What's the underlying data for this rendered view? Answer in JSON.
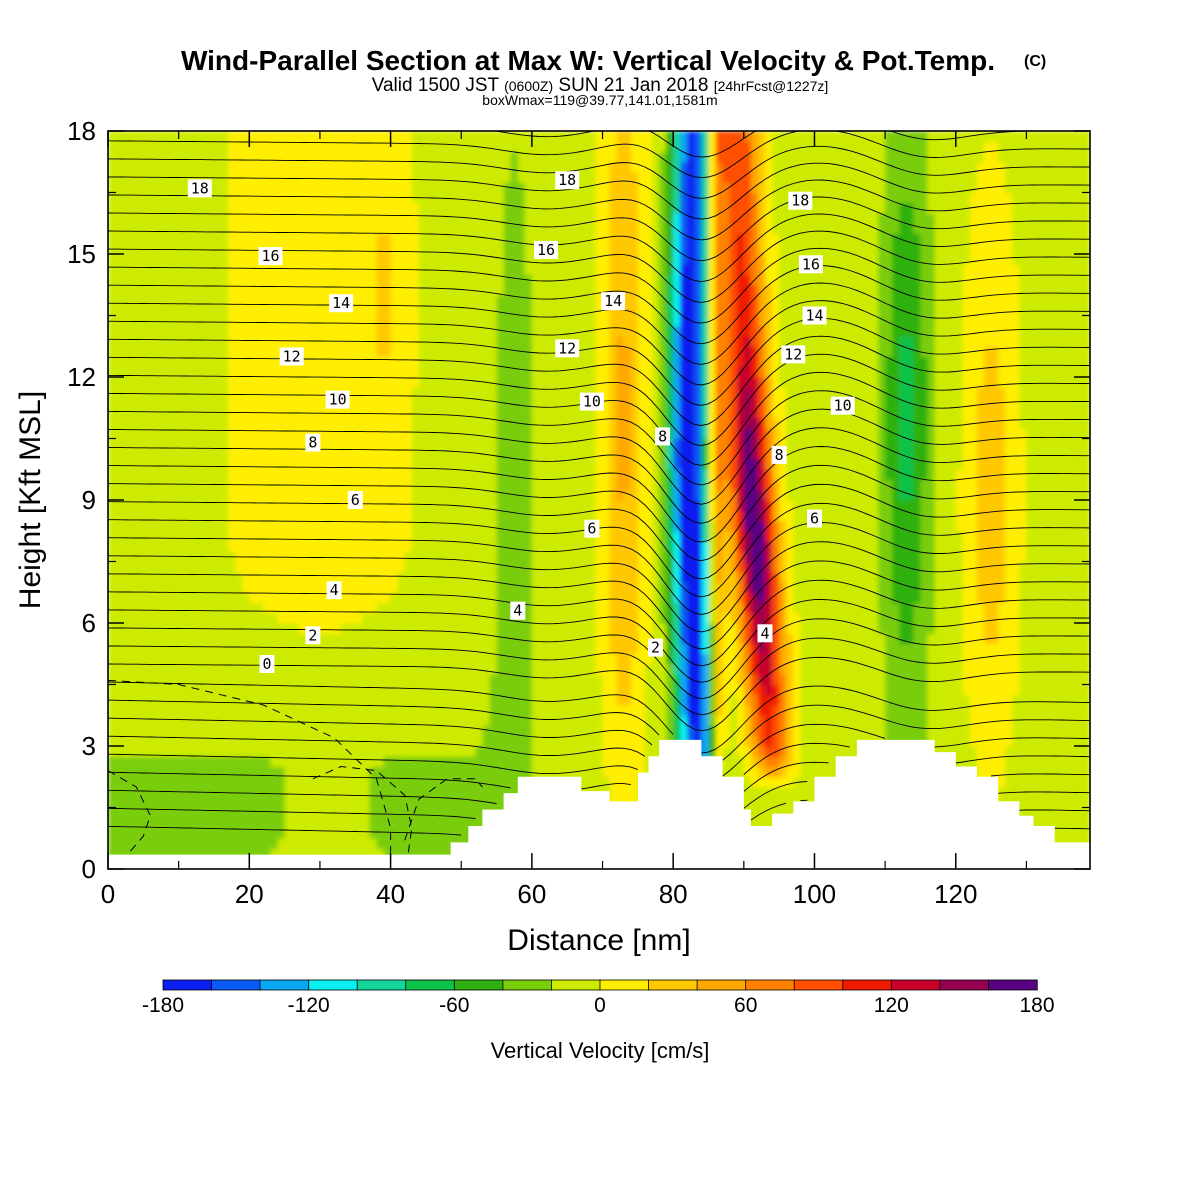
{
  "header": {
    "title_main": "Wind-Parallel Section at Max W: Vertical Velocity & Pot.Temp.",
    "title_mark": "(C)",
    "subtitle_a": "Valid 1500 JST",
    "subtitle_b": "(0600Z)",
    "subtitle_c": "SUN 21 Jan 2018",
    "subtitle_d": "[24hrFcst@1227z]",
    "subtitle2": "boxWmax=119@39.77,141.01,1581m"
  },
  "chart_data": {
    "type": "heatmap",
    "title": "Wind-Parallel Section at Max W: Vertical Velocity & Pot.Temp.",
    "xlabel": "Distance [nm]",
    "ylabel": "Height [Kft MSL]",
    "xlim": [
      0,
      139
    ],
    "ylim": [
      0,
      18
    ],
    "x_ticks": [
      0,
      20,
      40,
      60,
      80,
      100,
      120
    ],
    "y_ticks": [
      0,
      3,
      6,
      9,
      12,
      15,
      18
    ],
    "colorbar": {
      "label": "Vertical Velocity [cm/s]",
      "ticks": [
        -180,
        -120,
        -60,
        0,
        60,
        120,
        180
      ],
      "levels": [
        -180,
        -160,
        -140,
        -120,
        -100,
        -80,
        -60,
        -40,
        -20,
        0,
        20,
        40,
        60,
        80,
        100,
        120,
        140,
        160,
        180
      ],
      "colors": [
        "#0a1ef0",
        "#0a5af5",
        "#08a8f5",
        "#08f0f0",
        "#14d69b",
        "#0ec24a",
        "#2db010",
        "#7acd0a",
        "#cdeb00",
        "#ffee00",
        "#ffc800",
        "#ffa800",
        "#ff8200",
        "#ff5000",
        "#f01a00",
        "#c8002a",
        "#960050",
        "#5a0082"
      ]
    },
    "vertical_velocity_features": [
      {
        "kind": "downdraft",
        "x_center": 82,
        "min_cm_s": -180,
        "height_range": [
          3.0,
          18
        ]
      },
      {
        "kind": "updraft",
        "x_center": 91,
        "max_cm_s": 180,
        "height_range": [
          3.0,
          18
        ]
      },
      {
        "kind": "weak_downdraft",
        "x_center": 113,
        "min_cm_s": -60
      },
      {
        "kind": "weak_downdraft",
        "x_center": 57,
        "min_cm_s": -40
      },
      {
        "kind": "weak_updraft",
        "x_center": 73,
        "max_cm_s": 60
      },
      {
        "kind": "weak_updraft",
        "x_center": 125,
        "max_cm_s": 40
      }
    ],
    "pot_temp_contour_labels": [
      {
        "text": "18",
        "x": 13,
        "y": 16.6
      },
      {
        "text": "18",
        "x": 65,
        "y": 16.8
      },
      {
        "text": "18",
        "x": 98,
        "y": 16.3
      },
      {
        "text": "16",
        "x": 23,
        "y": 14.95
      },
      {
        "text": "16",
        "x": 62,
        "y": 15.1
      },
      {
        "text": "16",
        "x": 99.5,
        "y": 14.75
      },
      {
        "text": "14",
        "x": 33,
        "y": 13.8
      },
      {
        "text": "14",
        "x": 71.5,
        "y": 13.85
      },
      {
        "text": "14",
        "x": 100,
        "y": 13.5
      },
      {
        "text": "12",
        "x": 26,
        "y": 12.5
      },
      {
        "text": "12",
        "x": 65,
        "y": 12.7
      },
      {
        "text": "12",
        "x": 97,
        "y": 12.55
      },
      {
        "text": "10",
        "x": 32.5,
        "y": 11.45
      },
      {
        "text": "10",
        "x": 68.5,
        "y": 11.4
      },
      {
        "text": "10",
        "x": 104,
        "y": 11.3
      },
      {
        "text": "8",
        "x": 29,
        "y": 10.4
      },
      {
        "text": "8",
        "x": 78.5,
        "y": 10.55
      },
      {
        "text": "8",
        "x": 95,
        "y": 10.1
      },
      {
        "text": "6",
        "x": 35,
        "y": 9.0
      },
      {
        "text": "6",
        "x": 68.5,
        "y": 8.3
      },
      {
        "text": "6",
        "x": 100,
        "y": 8.55
      },
      {
        "text": "4",
        "x": 32,
        "y": 6.8
      },
      {
        "text": "4",
        "x": 58,
        "y": 6.3
      },
      {
        "text": "4",
        "x": 93,
        "y": 5.75
      },
      {
        "text": "2",
        "x": 29,
        "y": 5.7
      },
      {
        "text": "2",
        "x": 77.5,
        "y": 5.4
      },
      {
        "text": "0",
        "x": 22.5,
        "y": 5.0
      }
    ],
    "terrain_kft": [
      [
        0,
        0.35
      ],
      [
        48.5,
        0.35
      ],
      [
        48.5,
        0.65
      ],
      [
        51,
        0.65
      ],
      [
        51,
        1.05
      ],
      [
        53,
        1.05
      ],
      [
        53,
        1.45
      ],
      [
        56,
        1.45
      ],
      [
        56,
        1.85
      ],
      [
        58,
        1.85
      ],
      [
        58,
        2.25
      ],
      [
        67,
        2.25
      ],
      [
        67,
        1.9
      ],
      [
        71,
        1.9
      ],
      [
        71,
        1.65
      ],
      [
        75,
        1.65
      ],
      [
        75,
        2.35
      ],
      [
        76.5,
        2.35
      ],
      [
        76.5,
        2.75
      ],
      [
        78,
        2.75
      ],
      [
        78,
        3.15
      ],
      [
        84,
        3.15
      ],
      [
        84,
        2.75
      ],
      [
        87,
        2.75
      ],
      [
        87,
        2.25
      ],
      [
        90,
        2.25
      ],
      [
        90,
        1.45
      ],
      [
        91,
        1.45
      ],
      [
        91,
        1.05
      ],
      [
        94,
        1.05
      ],
      [
        94,
        1.35
      ],
      [
        97,
        1.35
      ],
      [
        97,
        1.65
      ],
      [
        100,
        1.65
      ],
      [
        100,
        2.25
      ],
      [
        103,
        2.25
      ],
      [
        103,
        2.75
      ],
      [
        106,
        2.75
      ],
      [
        106,
        3.15
      ],
      [
        117,
        3.15
      ],
      [
        117,
        2.85
      ],
      [
        120,
        2.85
      ],
      [
        120,
        2.5
      ],
      [
        123,
        2.5
      ],
      [
        123,
        2.25
      ],
      [
        126,
        2.25
      ],
      [
        126,
        1.65
      ],
      [
        129,
        1.65
      ],
      [
        129,
        1.3
      ],
      [
        131,
        1.3
      ],
      [
        131,
        1.05
      ],
      [
        134,
        1.05
      ],
      [
        134,
        0.65
      ],
      [
        139,
        0.65
      ]
    ]
  }
}
